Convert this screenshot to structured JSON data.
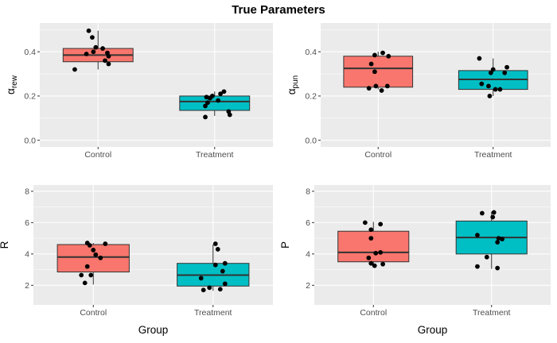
{
  "title": "True Parameters",
  "colors": {
    "Control": "#F8766D",
    "Treatment": "#00BFC4"
  },
  "chart_data": [
    {
      "type": "boxplot",
      "ylabel": "αrew",
      "ylabel_main": "α",
      "ylabel_sub": "rew",
      "xlabel": "",
      "categories": [
        "Control",
        "Treatment"
      ],
      "ylim": [
        -0.03,
        0.53
      ],
      "yticks": [
        0.0,
        0.2,
        0.4
      ],
      "ytick_labels": [
        "0.0",
        "0.2",
        "0.4"
      ],
      "boxes": [
        {
          "group": "Control",
          "lower": 0.32,
          "q1": 0.355,
          "median": 0.385,
          "q3": 0.415,
          "upper": 0.495
        },
        {
          "group": "Treatment",
          "lower": 0.11,
          "q1": 0.135,
          "median": 0.175,
          "q3": 0.2,
          "upper": 0.22
        }
      ],
      "points": [
        {
          "group": "Control",
          "jitter": -0.08,
          "y": 0.495
        },
        {
          "group": "Control",
          "jitter": -0.05,
          "y": 0.465
        },
        {
          "group": "Control",
          "jitter": -0.02,
          "y": 0.42
        },
        {
          "group": "Control",
          "jitter": 0.04,
          "y": 0.415
        },
        {
          "group": "Control",
          "jitter": -0.04,
          "y": 0.4
        },
        {
          "group": "Control",
          "jitter": 0.08,
          "y": 0.395
        },
        {
          "group": "Control",
          "jitter": -0.1,
          "y": 0.39
        },
        {
          "group": "Control",
          "jitter": 0.09,
          "y": 0.38
        },
        {
          "group": "Control",
          "jitter": 0.06,
          "y": 0.36
        },
        {
          "group": "Control",
          "jitter": 0.09,
          "y": 0.345
        },
        {
          "group": "Control",
          "jitter": -0.2,
          "y": 0.32
        },
        {
          "group": "Treatment",
          "jitter": 0.08,
          "y": 0.22
        },
        {
          "group": "Treatment",
          "jitter": 0.05,
          "y": 0.21
        },
        {
          "group": "Treatment",
          "jitter": -0.02,
          "y": 0.2
        },
        {
          "group": "Treatment",
          "jitter": -0.07,
          "y": 0.195
        },
        {
          "group": "Treatment",
          "jitter": -0.04,
          "y": 0.19
        },
        {
          "group": "Treatment",
          "jitter": 0.03,
          "y": 0.18
        },
        {
          "group": "Treatment",
          "jitter": -0.06,
          "y": 0.17
        },
        {
          "group": "Treatment",
          "jitter": -0.08,
          "y": 0.155
        },
        {
          "group": "Treatment",
          "jitter": 0.12,
          "y": 0.13
        },
        {
          "group": "Treatment",
          "jitter": 0.13,
          "y": 0.115
        },
        {
          "group": "Treatment",
          "jitter": -0.08,
          "y": 0.105
        }
      ]
    },
    {
      "type": "boxplot",
      "ylabel": "αpun",
      "ylabel_main": "α",
      "ylabel_sub": "pun",
      "xlabel": "",
      "categories": [
        "Control",
        "Treatment"
      ],
      "ylim": [
        -0.03,
        0.53
      ],
      "yticks": [
        0.0,
        0.2,
        0.4
      ],
      "ytick_labels": [
        "0.0",
        "0.2",
        "0.4"
      ],
      "boxes": [
        {
          "group": "Control",
          "lower": 0.23,
          "q1": 0.24,
          "median": 0.325,
          "q3": 0.38,
          "upper": 0.4
        },
        {
          "group": "Treatment",
          "lower": 0.2,
          "q1": 0.23,
          "median": 0.275,
          "q3": 0.315,
          "upper": 0.37
        }
      ],
      "points": [
        {
          "group": "Control",
          "jitter": 0.04,
          "y": 0.395
        },
        {
          "group": "Control",
          "jitter": -0.03,
          "y": 0.385
        },
        {
          "group": "Control",
          "jitter": 0.09,
          "y": 0.38
        },
        {
          "group": "Control",
          "jitter": -0.06,
          "y": 0.345
        },
        {
          "group": "Control",
          "jitter": -0.03,
          "y": 0.31
        },
        {
          "group": "Control",
          "jitter": -0.02,
          "y": 0.245
        },
        {
          "group": "Control",
          "jitter": 0.08,
          "y": 0.245
        },
        {
          "group": "Control",
          "jitter": -0.08,
          "y": 0.235
        },
        {
          "group": "Control",
          "jitter": 0.03,
          "y": 0.225
        },
        {
          "group": "Treatment",
          "jitter": -0.12,
          "y": 0.37
        },
        {
          "group": "Treatment",
          "jitter": 0.12,
          "y": 0.33
        },
        {
          "group": "Treatment",
          "jitter": 0.0,
          "y": 0.32
        },
        {
          "group": "Treatment",
          "jitter": 0.1,
          "y": 0.305
        },
        {
          "group": "Treatment",
          "jitter": -0.02,
          "y": 0.305
        },
        {
          "group": "Treatment",
          "jitter": -0.1,
          "y": 0.255
        },
        {
          "group": "Treatment",
          "jitter": -0.04,
          "y": 0.245
        },
        {
          "group": "Treatment",
          "jitter": 0.02,
          "y": 0.23
        },
        {
          "group": "Treatment",
          "jitter": 0.06,
          "y": 0.23
        },
        {
          "group": "Treatment",
          "jitter": -0.03,
          "y": 0.2
        }
      ]
    },
    {
      "type": "boxplot",
      "ylabel": "R",
      "xlabel": "Group",
      "categories": [
        "Control",
        "Treatment"
      ],
      "ylim": [
        0.75,
        8.4
      ],
      "yticks": [
        2,
        4,
        6,
        8
      ],
      "ytick_labels": [
        "2",
        "4",
        "6",
        "8"
      ],
      "boxes": [
        {
          "group": "Control",
          "lower": 2.05,
          "q1": 2.85,
          "median": 3.8,
          "q3": 4.6,
          "upper": 4.7
        },
        {
          "group": "Treatment",
          "lower": 1.65,
          "q1": 1.95,
          "median": 2.65,
          "q3": 3.4,
          "upper": 4.6
        }
      ],
      "points": [
        {
          "group": "Control",
          "jitter": -0.05,
          "y": 4.7
        },
        {
          "group": "Control",
          "jitter": 0.1,
          "y": 4.65
        },
        {
          "group": "Control",
          "jitter": -0.03,
          "y": 4.55
        },
        {
          "group": "Control",
          "jitter": 0.0,
          "y": 4.25
        },
        {
          "group": "Control",
          "jitter": 0.02,
          "y": 3.95
        },
        {
          "group": "Control",
          "jitter": 0.06,
          "y": 3.75
        },
        {
          "group": "Control",
          "jitter": -0.05,
          "y": 3.2
        },
        {
          "group": "Control",
          "jitter": -0.1,
          "y": 2.65
        },
        {
          "group": "Control",
          "jitter": -0.02,
          "y": 2.65
        },
        {
          "group": "Control",
          "jitter": -0.07,
          "y": 2.15
        },
        {
          "group": "Treatment",
          "jitter": 0.02,
          "y": 4.65
        },
        {
          "group": "Treatment",
          "jitter": 0.04,
          "y": 4.3
        },
        {
          "group": "Treatment",
          "jitter": 0.1,
          "y": 3.4
        },
        {
          "group": "Treatment",
          "jitter": 0.02,
          "y": 3.3
        },
        {
          "group": "Treatment",
          "jitter": 0.08,
          "y": 2.9
        },
        {
          "group": "Treatment",
          "jitter": -0.1,
          "y": 2.45
        },
        {
          "group": "Treatment",
          "jitter": 0.1,
          "y": 2.1
        },
        {
          "group": "Treatment",
          "jitter": -0.03,
          "y": 1.85
        },
        {
          "group": "Treatment",
          "jitter": -0.08,
          "y": 1.7
        },
        {
          "group": "Treatment",
          "jitter": 0.06,
          "y": 1.75
        }
      ]
    },
    {
      "type": "boxplot",
      "ylabel": "P",
      "xlabel": "Group",
      "categories": [
        "Control",
        "Treatment"
      ],
      "ylim": [
        0.75,
        8.4
      ],
      "yticks": [
        2,
        4,
        6,
        8
      ],
      "ytick_labels": [
        "2",
        "4",
        "6",
        "8"
      ],
      "boxes": [
        {
          "group": "Control",
          "lower": 3.25,
          "q1": 3.5,
          "median": 4.1,
          "q3": 5.45,
          "upper": 6.05
        },
        {
          "group": "Treatment",
          "lower": 3.05,
          "q1": 4.0,
          "median": 5.05,
          "q3": 6.1,
          "upper": 6.7
        }
      ],
      "points": [
        {
          "group": "Control",
          "jitter": -0.07,
          "y": 6.0
        },
        {
          "group": "Control",
          "jitter": 0.06,
          "y": 5.9
        },
        {
          "group": "Control",
          "jitter": -0.02,
          "y": 5.55
        },
        {
          "group": "Control",
          "jitter": -0.02,
          "y": 5.0
        },
        {
          "group": "Control",
          "jitter": 0.06,
          "y": 4.1
        },
        {
          "group": "Control",
          "jitter": 0.02,
          "y": 4.05
        },
        {
          "group": "Control",
          "jitter": -0.04,
          "y": 3.75
        },
        {
          "group": "Control",
          "jitter": -0.02,
          "y": 3.4
        },
        {
          "group": "Control",
          "jitter": 0.08,
          "y": 3.35
        },
        {
          "group": "Control",
          "jitter": 0.01,
          "y": 3.25
        },
        {
          "group": "Treatment",
          "jitter": -0.08,
          "y": 6.6
        },
        {
          "group": "Treatment",
          "jitter": 0.02,
          "y": 6.65
        },
        {
          "group": "Treatment",
          "jitter": 0.01,
          "y": 6.35
        },
        {
          "group": "Treatment",
          "jitter": -0.12,
          "y": 5.2
        },
        {
          "group": "Treatment",
          "jitter": 0.06,
          "y": 5.0
        },
        {
          "group": "Treatment",
          "jitter": 0.09,
          "y": 4.95
        },
        {
          "group": "Treatment",
          "jitter": 0.05,
          "y": 4.75
        },
        {
          "group": "Treatment",
          "jitter": -0.04,
          "y": 3.8
        },
        {
          "group": "Treatment",
          "jitter": -0.12,
          "y": 3.2
        },
        {
          "group": "Treatment",
          "jitter": 0.05,
          "y": 3.1
        }
      ]
    }
  ]
}
